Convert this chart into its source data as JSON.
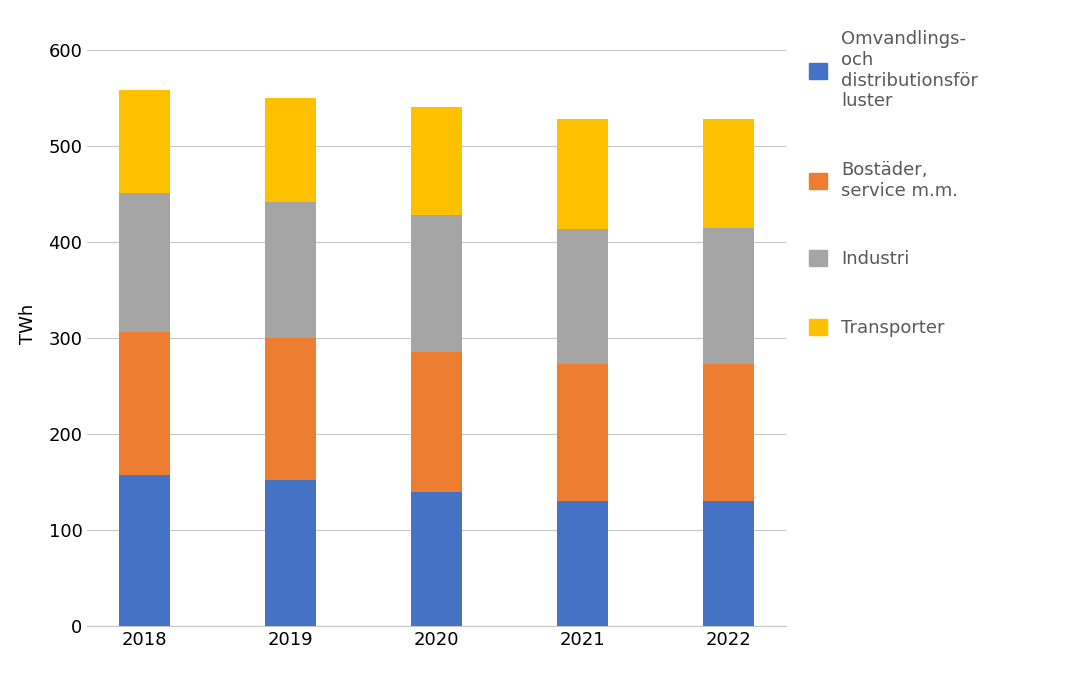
{
  "years": [
    "2018",
    "2019",
    "2020",
    "2021",
    "2022"
  ],
  "omvandling": [
    158,
    152,
    140,
    130,
    130
  ],
  "bostader": [
    148,
    148,
    145,
    143,
    143
  ],
  "industri": [
    145,
    142,
    143,
    140,
    142
  ],
  "transporter": [
    107,
    108,
    112,
    115,
    113
  ],
  "colors": {
    "omvandling": "#4472C4",
    "bostader": "#ED7D31",
    "industri": "#A5A5A5",
    "transporter": "#FFC000"
  },
  "ylabel": "TWh",
  "ylim": [
    0,
    630
  ],
  "yticks": [
    0,
    100,
    200,
    300,
    400,
    500,
    600
  ],
  "legend_labels": [
    "Omvandlings-\noch\ndistributionsför\nluster",
    "Bostäder,\nservice m.m.",
    "Industri",
    "Transporter"
  ],
  "bar_width": 0.35,
  "figure_width": 10.91,
  "figure_height": 6.96,
  "background_color": "#FFFFFF",
  "grid_color": "#C8C8C8"
}
